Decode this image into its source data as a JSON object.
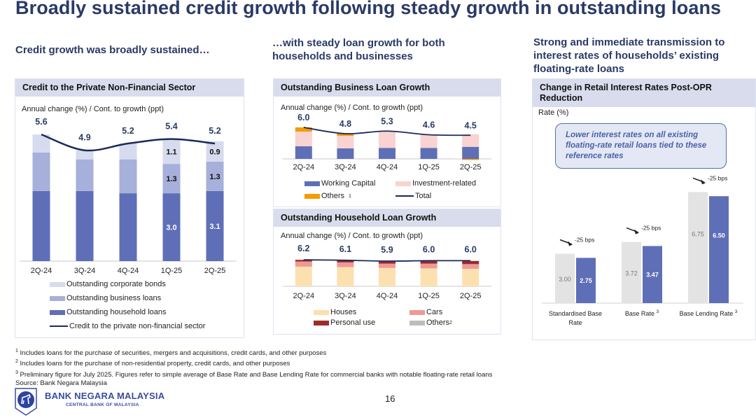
{
  "title": "Broadly sustained credit growth following steady growth in outstanding loans",
  "subtitles": {
    "left": "Credit growth was broadly sustained…",
    "middle": "…with steady loan growth for both households and businesses",
    "right": "Strong and immediate transmission to interest rates of households’ existing floating-rate loans"
  },
  "callout": "Lower interest rates on all existing floating-rate retail loans tied to these reference rates",
  "footnotes": [
    {
      "mark": "1",
      "text": "Includes loans for the purchase of securities, mergers and acquisitions, credit cards, and other purposes"
    },
    {
      "mark": "2",
      "text": "Includes loans for the purchase of non-residential property, credit cards, and other purposes"
    },
    {
      "mark": "3",
      "text": "Preliminary figure for July 2025. Figures refer to simple average of Base Rate and Base Lending Rate for commercial banks with notable floating-rate retail loans"
    }
  ],
  "source": "Source: Bank Negara Malaysia",
  "logo": {
    "name": "BANK NEGARA MALAYSIA",
    "tagline": "CENTRAL BANK OF MALAYSIA"
  },
  "page_number": "16",
  "colors": {
    "title": "#2a3a66",
    "household": "#5f6fb7",
    "business": "#a7b0da",
    "bonds": "#d6dbee",
    "line": "#1b2a5a"
  },
  "chart_data": [
    {
      "id": "credit",
      "type": "bar",
      "stacked": true,
      "title": "Credit to the Private Non-Financial Sector",
      "ylabel": "Annual change (%) / Cont. to growth (ppt)",
      "categories": [
        "2Q-24",
        "3Q-24",
        "4Q-24",
        "1Q-25",
        "2Q-25"
      ],
      "series": [
        {
          "name": "Outstanding household loans",
          "color": "#5f6fb7",
          "values": [
            3.1,
            3.1,
            3.0,
            3.0,
            3.1
          ],
          "labels": [
            "",
            "",
            "",
            "3.0",
            "3.1"
          ],
          "label_color": "#ffffff"
        },
        {
          "name": "Outstanding business loans",
          "color": "#a7b0da",
          "values": [
            1.7,
            1.4,
            1.5,
            1.3,
            1.3
          ],
          "labels": [
            "",
            "",
            "",
            "1.3",
            "1.3"
          ],
          "label_color": "#111111"
        },
        {
          "name": "Outstanding corporate bonds",
          "color": "#d6dbee",
          "values": [
            0.8,
            0.4,
            0.7,
            1.1,
            0.9
          ],
          "labels": [
            "",
            "",
            "",
            "1.1",
            "0.9"
          ],
          "label_color": "#111111"
        }
      ],
      "line": {
        "name": "Credit to the private non-financial sector",
        "color": "#1b2a5a",
        "values": [
          5.6,
          4.9,
          5.2,
          5.4,
          5.2
        ],
        "labels": [
          "5.6",
          "4.9",
          "5.2",
          "5.4",
          "5.2"
        ]
      },
      "legend": [
        "Outstanding corporate bonds",
        "Outstanding business loans",
        "Outstanding household loans",
        "Credit to the private non-financial sector"
      ],
      "ylim": [
        0,
        6
      ]
    },
    {
      "id": "business",
      "type": "bar",
      "stacked": true,
      "title": "Outstanding Business Loan Growth",
      "ylabel": "Annual change (%) / Cont. to growth (ppt)",
      "categories": [
        "2Q-24",
        "3Q-24",
        "4Q-24",
        "1Q-25",
        "2Q-25"
      ],
      "series": [
        {
          "name": "Working Capital",
          "color": "#5f6fb7",
          "values": [
            2.4,
            2.0,
            2.1,
            2.1,
            2.3
          ]
        },
        {
          "name": "Investment-related",
          "color": "#f8d3d1",
          "values": [
            2.8,
            2.4,
            3.1,
            2.5,
            2.4
          ]
        },
        {
          "name": "Others",
          "sup": "1",
          "color": "#f59a00",
          "values": [
            0.8,
            0.4,
            0.1,
            0.0,
            -0.2
          ]
        }
      ],
      "line": {
        "name": "Total",
        "color": "#1b2a5a",
        "values": [
          6.0,
          4.8,
          5.3,
          4.6,
          4.5
        ],
        "labels": [
          "6.0",
          "4.8",
          "5.3",
          "4.6",
          "4.5"
        ]
      },
      "ylim": [
        -0.5,
        6.5
      ]
    },
    {
      "id": "household",
      "type": "bar",
      "stacked": true,
      "title": "Outstanding Household Loan Growth",
      "ylabel": "Annual change (%) / Cont. to growth (ppt)",
      "categories": [
        "2Q-24",
        "3Q-24",
        "4Q-24",
        "1Q-25",
        "2Q-25"
      ],
      "series": [
        {
          "name": "Houses",
          "color": "#fde0b0",
          "values": [
            4.6,
            4.5,
            4.3,
            4.2,
            4.1
          ]
        },
        {
          "name": "Cars",
          "color": "#ee9a94",
          "values": [
            1.2,
            1.1,
            1.0,
            1.1,
            1.1
          ]
        },
        {
          "name": "Personal use",
          "color": "#9c2b2b",
          "values": [
            0.4,
            0.5,
            0.5,
            0.6,
            0.7
          ]
        },
        {
          "name": "Others",
          "sup": "2",
          "color": "#bdbdbd",
          "values": [
            0.0,
            0.0,
            0.1,
            0.1,
            0.1
          ]
        }
      ],
      "line": {
        "name": "Total",
        "color": "#1b2a5a",
        "values": [
          6.2,
          6.1,
          5.9,
          6.0,
          6.0
        ],
        "labels": [
          "6.2",
          "6.1",
          "5.9",
          "6.0",
          "6.0"
        ]
      },
      "ylim": [
        0,
        7
      ]
    },
    {
      "id": "rates",
      "type": "bar",
      "title": "Change in Retail Interest Rates Post-OPR Reduction",
      "ylabel": "Rate (%)",
      "categories": [
        "Standardised Base Rate",
        "Base Rate",
        "Base Lending Rate"
      ],
      "category_sups": [
        "",
        "3",
        "3"
      ],
      "series": [
        {
          "name": "Before",
          "color": "#e3e3e3",
          "values": [
            3.0,
            3.72,
            6.75
          ],
          "labels": [
            "3.00",
            "3.72",
            "6.75"
          ],
          "label_color": "#777777"
        },
        {
          "name": "After",
          "color": "#5f6fb7",
          "values": [
            2.75,
            3.47,
            6.5
          ],
          "labels": [
            "2.75",
            "3.47",
            "6.50"
          ],
          "label_color": "#ffffff"
        }
      ],
      "annotations": [
        "-25 bps",
        "-25 bps",
        "-25 bps"
      ],
      "ylim": [
        0,
        7
      ]
    }
  ]
}
